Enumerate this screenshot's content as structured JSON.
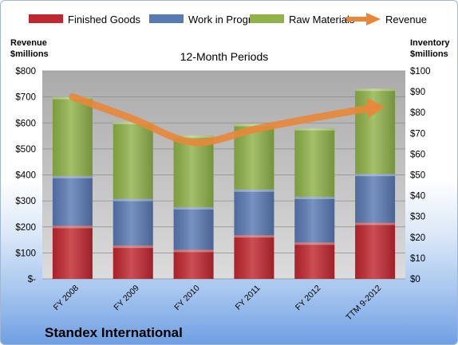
{
  "chart_data": {
    "type": "bar",
    "stacked": true,
    "subtitle": "12-Month Periods",
    "categories": [
      "FY 2008",
      "FY 2009",
      "FY 2010",
      "FY 2011",
      "FY 2012",
      "TTM 9-2012"
    ],
    "series": [
      {
        "name": "Finished Goods",
        "axis": "right",
        "color": "#c0282f",
        "values": [
          25.5,
          16.0,
          14.0,
          21.0,
          17.5,
          27.0
        ]
      },
      {
        "name": "Work in Progress",
        "axis": "right",
        "color": "#5a7ab3",
        "values": [
          24.0,
          22.5,
          20.5,
          22.0,
          22.0,
          23.5
        ]
      },
      {
        "name": "Raw Materials",
        "axis": "right",
        "color": "#8fb34a",
        "values": [
          38.0,
          37.0,
          34.5,
          31.5,
          33.0,
          41.0
        ]
      },
      {
        "name": "Revenue",
        "axis": "left",
        "type": "line",
        "color": "#e8873a",
        "values": [
          700,
          615,
          525,
          575,
          620,
          660
        ]
      }
    ],
    "left_axis": {
      "label_line1": "Revenue",
      "label_line2": "$millions",
      "ylim": [
        0,
        800
      ],
      "ticks": [
        "$-",
        "$100",
        "$200",
        "$300",
        "$400",
        "$500",
        "$600",
        "$700",
        "$800"
      ]
    },
    "right_axis": {
      "label_line1": "Inventory",
      "label_line2": "$millions",
      "ylim": [
        0,
        100
      ],
      "ticks": [
        "$0",
        "$10",
        "$20",
        "$30",
        "$40",
        "$50",
        "$60",
        "$70",
        "$80",
        "$90",
        "$100"
      ]
    },
    "legend_position": "top",
    "grid": true
  },
  "footer": {
    "company": "Standex International"
  }
}
